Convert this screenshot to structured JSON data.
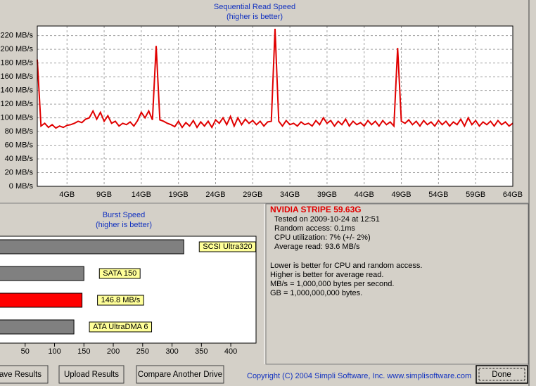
{
  "chart_data": [
    {
      "type": "line",
      "title": "Sequential Read Speed",
      "subtitle": "(higher is better)",
      "x": [
        0,
        0.5,
        1,
        1.5,
        2,
        2.5,
        3,
        3.5,
        4,
        4.5,
        5,
        5.5,
        6,
        6.5,
        7,
        7.5,
        8,
        8.5,
        9,
        9.5,
        10,
        10.5,
        11,
        11.5,
        12,
        12.5,
        13,
        13.5,
        14,
        14.5,
        15,
        15.5,
        16,
        16.5,
        17,
        17.5,
        18,
        18.5,
        19,
        19.5,
        20,
        20.5,
        21,
        21.5,
        22,
        22.5,
        23,
        23.5,
        24,
        24.5,
        25,
        25.5,
        26,
        26.5,
        27,
        27.5,
        28,
        28.5,
        29,
        29.5,
        30,
        30.5,
        31,
        31.5,
        32,
        32.5,
        33,
        33.5,
        34,
        34.5,
        35,
        35.5,
        36,
        36.5,
        37,
        37.5,
        38,
        38.5,
        39,
        39.5,
        40,
        40.5,
        41,
        41.5,
        42,
        42.5,
        43,
        43.5,
        44,
        44.5,
        45,
        45.5,
        46,
        46.5,
        47,
        47.5,
        48,
        48.5,
        49,
        49.5,
        50,
        50.5,
        51,
        51.5,
        52,
        52.5,
        53,
        53.5,
        54,
        54.5,
        55,
        55.5,
        56,
        56.5,
        57,
        57.5,
        58,
        58.5,
        59,
        59.5,
        60,
        60.5,
        61,
        61.5,
        62,
        62.5,
        63,
        63.5,
        64
      ],
      "series": [
        {
          "color": "#e00000",
          "values": [
            185,
            88,
            92,
            86,
            90,
            85,
            88,
            86,
            89,
            90,
            92,
            95,
            93,
            98,
            100,
            110,
            98,
            108,
            95,
            103,
            92,
            95,
            88,
            92,
            90,
            94,
            88,
            96,
            108,
            100,
            110,
            97,
            205,
            97,
            95,
            92,
            90,
            87,
            95,
            86,
            93,
            88,
            96,
            86,
            94,
            88,
            95,
            86,
            97,
            92,
            100,
            90,
            102,
            88,
            100,
            90,
            98,
            92,
            96,
            90,
            95,
            88,
            94,
            95,
            230,
            95,
            88,
            96,
            90,
            92,
            88,
            94,
            90,
            92,
            88,
            96,
            90,
            100,
            92,
            96,
            88,
            95,
            90,
            98,
            88,
            95,
            90,
            93,
            88,
            96,
            90,
            95,
            88,
            96,
            90,
            94,
            88,
            202,
            95,
            92,
            97,
            90,
            95,
            88,
            96,
            90,
            94,
            88,
            96,
            90,
            95,
            88,
            94,
            90,
            98,
            88,
            100,
            90,
            96,
            88,
            94,
            90,
            95,
            88,
            96,
            90,
            94,
            88,
            92
          ]
        }
      ],
      "xlim": [
        0,
        64
      ],
      "xticks": [
        {
          "value": 4,
          "label": "4GB"
        },
        {
          "value": 9,
          "label": "9GB"
        },
        {
          "value": 14,
          "label": "14GB"
        },
        {
          "value": 19,
          "label": "19GB"
        },
        {
          "value": 24,
          "label": "24GB"
        },
        {
          "value": 29,
          "label": "29GB"
        },
        {
          "value": 34,
          "label": "34GB"
        },
        {
          "value": 39,
          "label": "39GB"
        },
        {
          "value": 44,
          "label": "44GB"
        },
        {
          "value": 49,
          "label": "49GB"
        },
        {
          "value": 54,
          "label": "54GB"
        },
        {
          "value": 59,
          "label": "59GB"
        },
        {
          "value": 64,
          "label": "64GB"
        }
      ],
      "ylim": [
        0,
        234
      ],
      "yticks": [
        {
          "value": 0,
          "label": "0 MB/s"
        },
        {
          "value": 20,
          "label": "20 MB/s"
        },
        {
          "value": 40,
          "label": "40 MB/s"
        },
        {
          "value": 60,
          "label": "60 MB/s"
        },
        {
          "value": 80,
          "label": "80 MB/s"
        },
        {
          "value": 100,
          "label": "100 MB/s"
        },
        {
          "value": 120,
          "label": "120 MB/s"
        },
        {
          "value": 140,
          "label": "140 MB/s"
        },
        {
          "value": 160,
          "label": "160 MB/s"
        },
        {
          "value": 180,
          "label": "180 MB/s"
        },
        {
          "value": 200,
          "label": "200 MB/s"
        },
        {
          "value": 220,
          "label": "220 MB/s"
        }
      ],
      "grid": true
    },
    {
      "type": "hbar",
      "title": "Burst Speed",
      "subtitle": "(higher is better)",
      "categories": [
        "SCSI Ultra320",
        "SATA 150",
        null,
        "ATA UltraDMA 6"
      ],
      "values": [
        320,
        150,
        146.8,
        133
      ],
      "value_labels": [
        null,
        null,
        "146.8 MB/s",
        null
      ],
      "colors": [
        "#808080",
        "#808080",
        "#ff0000",
        "#808080"
      ],
      "xlim": [
        0,
        443
      ],
      "xticks": [
        50,
        100,
        150,
        200,
        250,
        300,
        350,
        400
      ]
    }
  ],
  "info": {
    "title": "NVIDIA STRIPE  59.63G",
    "details": [
      "Tested on 2009-10-24 at 12:51",
      "Random access: 0.1ms",
      "CPU utilization: 7% (+/- 2%)",
      "Average read: 93.6 MB/s"
    ],
    "notes": [
      "Lower is better for CPU and random access.",
      "Higher is better for average read.",
      "MB/s = 1,000,000 bytes per second.",
      "GB = 1,000,000,000 bytes."
    ]
  },
  "buttons": [
    "ave Results",
    "Upload Results",
    "Compare Another Drive"
  ],
  "done": "Done",
  "copyright": "Copyright (C) 2004 Simpli Software, Inc. www.simplisoftware.com"
}
